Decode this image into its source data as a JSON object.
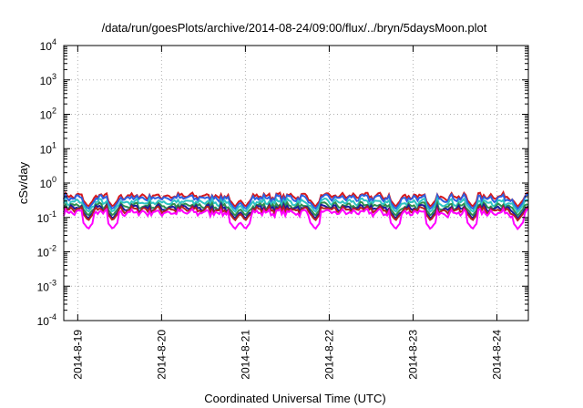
{
  "chart_data": {
    "type": "line",
    "title": "/data/run/goesPlots/archive/2014-08-24/09:00/flux/../bryn/5daysMoon.plot",
    "xlabel": "Coordinated Universal Time (UTC)",
    "ylabel": "cSv/day",
    "yscale": "log",
    "ylim": [
      0.0001,
      10000
    ],
    "xlim": [
      "2014-08-18T20:00",
      "2014-08-24T09:00"
    ],
    "grid": true,
    "y_ticks": [
      {
        "base": "10",
        "exp": "-4"
      },
      {
        "base": "10",
        "exp": "-3"
      },
      {
        "base": "10",
        "exp": "-2"
      },
      {
        "base": "10",
        "exp": "-1"
      },
      {
        "base": "10",
        "exp": "0"
      },
      {
        "base": "10",
        "exp": "1"
      },
      {
        "base": "10",
        "exp": "2"
      },
      {
        "base": "10",
        "exp": "3"
      },
      {
        "base": "10",
        "exp": "4"
      }
    ],
    "x_ticks": [
      "2014-8-19",
      "2014-8-20",
      "2014-8-21",
      "2014-8-22",
      "2014-8-23",
      "2014-8-24"
    ],
    "x_tick_dates": [
      "2014-08-19T00:00",
      "2014-08-20T00:00",
      "2014-08-21T00:00",
      "2014-08-22T00:00",
      "2014-08-23T00:00",
      "2014-08-24T00:00"
    ],
    "series": [
      {
        "color": "#d7191c",
        "level": 0.42,
        "dip_level": 0.2
      },
      {
        "color": "#2c60e0",
        "level": 0.37,
        "dip_level": 0.17
      },
      {
        "color": "#2ec4c4",
        "level": 0.28,
        "dip_level": 0.14
      },
      {
        "color": "#2f8f4e",
        "level": 0.22,
        "dip_level": 0.11
      },
      {
        "color": "#1a1aa0",
        "level": 0.19,
        "dip_level": 0.09
      },
      {
        "color": "#b22222",
        "level": 0.17,
        "dip_level": 0.08
      },
      {
        "color": "#ff00ff",
        "level": 0.14,
        "dip_level": 0.045
      }
    ],
    "dips": [
      "2014-08-19T03:00",
      "2014-08-19T10:00",
      "2014-08-20T21:00",
      "2014-08-21T00:00",
      "2014-08-21T20:00",
      "2014-08-22T19:00",
      "2014-08-23T05:00",
      "2014-08-23T17:00",
      "2014-08-24T06:00"
    ]
  }
}
